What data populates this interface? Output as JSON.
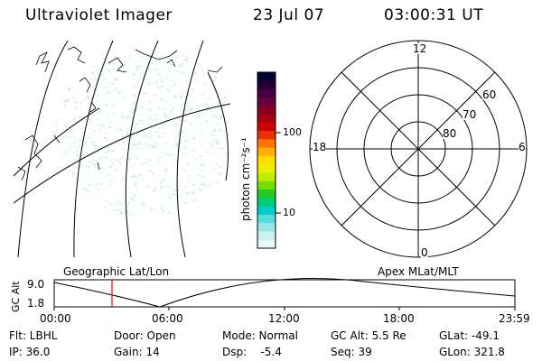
{
  "header": {
    "title": "Ultraviolet Imager",
    "date": "23 Jul 07",
    "time": "03:00:31 UT"
  },
  "colorbar": {
    "unit_label": "photon cm⁻²s⁻¹",
    "tick_labels": [
      "100",
      "10"
    ],
    "colors": [
      "#000033",
      "#220033",
      "#440044",
      "#660044",
      "#880022",
      "#aa0011",
      "#cc0000",
      "#e83000",
      "#ff7700",
      "#ffb000",
      "#ffdd00",
      "#eeee00",
      "#bbee00",
      "#77dd00",
      "#22cc22",
      "#00cc77",
      "#00cccc",
      "#55dddd",
      "#99e6e6",
      "#c8f0f0",
      "#e8f8f8"
    ]
  },
  "polar_plot": {
    "clock_labels": [
      "12",
      "18",
      "6",
      "0"
    ],
    "lat_labels": [
      "60",
      "70",
      "80"
    ]
  },
  "geo_panel": {
    "label": "Geographic Lat/Lon"
  },
  "apex_panel": {
    "label": "Apex MLat/MLT"
  },
  "altitude_plot": {
    "ylabel": "GC Alt",
    "y_ticks": [
      "9.0",
      "1.8"
    ],
    "x_ticks": [
      "00:00",
      "06:00",
      "12:00",
      "18:00",
      "23:59"
    ],
    "current_marker": "03:00"
  },
  "info": {
    "flt": "Flt: LBHL",
    "ip": "IP: 36.0",
    "door": "Door: Open",
    "gain": "Gain: 14",
    "mode": "Mode: Normal",
    "dsp": "Dsp:    -5.4",
    "gc_alt": "GC Alt: 5.5 Re",
    "seq": "Seq: 39",
    "glat": "GLat: -49.1",
    "glon": "GLon: 321.8"
  }
}
